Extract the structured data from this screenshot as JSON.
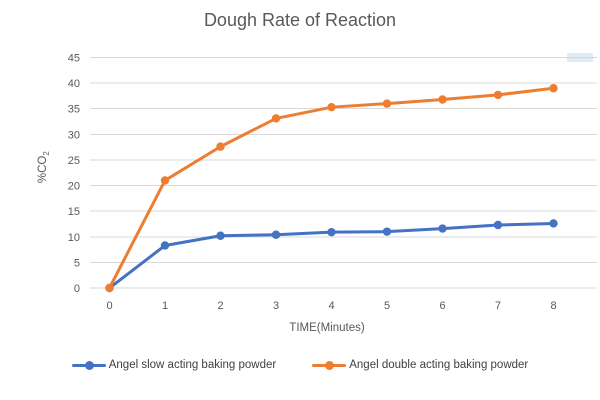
{
  "colors": {
    "background": "#FFFFFF",
    "title_text": "#595959",
    "axis_text": "#595959",
    "legend_text": "#404040",
    "gridline": "#D9D9D9",
    "series_slow": "#4472C4",
    "series_double": "#ED7D31",
    "artifact_highlight": "#BCD2EA"
  },
  "chart_data": {
    "type": "line",
    "title": "Dough Rate of Reaction",
    "xlabel": "TIME(Minutes)",
    "ylabel": "%CO2",
    "ylabel_main": "%CO",
    "ylabel_sub": "2",
    "x": [
      0,
      1,
      2,
      3,
      4,
      5,
      6,
      7,
      8
    ],
    "xtick_labels": [
      "0",
      "1",
      "2",
      "3",
      "4",
      "5",
      "6",
      "7",
      "8"
    ],
    "yticks": [
      0,
      5,
      10,
      15,
      20,
      25,
      30,
      35,
      40,
      45
    ],
    "ylim": [
      0,
      45
    ],
    "grid": "horizontal",
    "legend_position": "bottom",
    "marker": "circle",
    "series": [
      {
        "name": "Angel slow acting baking powder",
        "color": "#4472C4",
        "values": [
          0,
          8.3,
          10.2,
          10.4,
          10.9,
          11,
          11.6,
          12.3,
          12.6
        ]
      },
      {
        "name": "Angel double acting baking powder",
        "color": "#ED7D31",
        "values": [
          0,
          21,
          27.6,
          33.1,
          35.3,
          36,
          36.8,
          37.7,
          39
        ]
      }
    ]
  }
}
